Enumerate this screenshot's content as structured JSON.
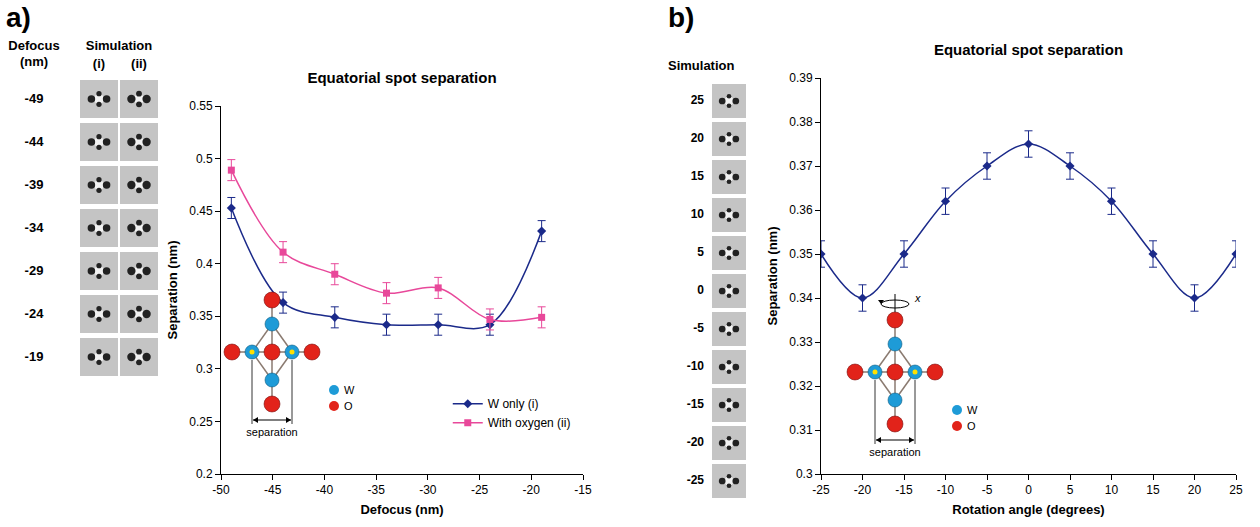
{
  "panels": [
    {
      "label": "a)",
      "simulation": {
        "row_header": "Defocus (nm)",
        "header": "Simulation",
        "columns": [
          "(i)",
          "(ii)"
        ],
        "rows": [
          -49,
          -44,
          -39,
          -34,
          -29,
          -24,
          -19
        ]
      },
      "inset": {
        "labels": [
          "W",
          "O"
        ],
        "colors": [
          "#1e9bd7",
          "#e2231a"
        ],
        "measure": "separation"
      }
    },
    {
      "label": "b)",
      "simulation": {
        "header": "Simulation",
        "rows": [
          25,
          20,
          15,
          10,
          5,
          0,
          -5,
          -10,
          -15,
          -20,
          -25
        ]
      },
      "inset": {
        "labels": [
          "W",
          "O"
        ],
        "colors": [
          "#1e9bd7",
          "#e2231a"
        ],
        "measure": "separation",
        "axis": "x"
      }
    }
  ],
  "chart_data": [
    {
      "type": "line",
      "title": "Equatorial spot separation",
      "x_label": "Defocus (nm)",
      "y_label": "Separation (nm)",
      "x": [
        -49,
        -44,
        -39,
        -34,
        -29,
        -24,
        -19
      ],
      "series": [
        {
          "name": "W only (i)",
          "color": "#1b2a8a",
          "marker": "diamond",
          "values": [
            0.453,
            0.363,
            0.349,
            0.342,
            0.342,
            0.342,
            0.431
          ],
          "errors": [
            0.01,
            0.01,
            0.01,
            0.01,
            0.01,
            0.01,
            0.01
          ]
        },
        {
          "name": "With oxygen (ii)",
          "color": "#e8489a",
          "marker": "square",
          "values": [
            0.489,
            0.411,
            0.39,
            0.372,
            0.377,
            0.347,
            0.349
          ],
          "errors": [
            0.01,
            0.01,
            0.01,
            0.01,
            0.01,
            0.01,
            0.01
          ]
        }
      ],
      "xlim": [
        -50,
        -15
      ],
      "xticks": [
        -50,
        -45,
        -40,
        -35,
        -30,
        -25,
        -20,
        -15
      ],
      "ylim": [
        0.2,
        0.55
      ],
      "yticks": [
        0.2,
        0.25,
        0.3,
        0.35,
        0.4,
        0.45,
        0.5,
        0.55
      ],
      "grid": false,
      "legend": "lower right",
      "line_style": "smooth"
    },
    {
      "type": "line",
      "title": "Equatorial spot separation",
      "x_label": "Rotation angle (degrees)",
      "y_label": "Separation (nm)",
      "x": [
        -25,
        -20,
        -15,
        -10,
        -5,
        0,
        5,
        10,
        15,
        20,
        25
      ],
      "values": [
        0.35,
        0.34,
        0.35,
        0.362,
        0.37,
        0.375,
        0.37,
        0.362,
        0.35,
        0.34,
        0.35
      ],
      "errors": [
        0.003,
        0.003,
        0.003,
        0.003,
        0.003,
        0.003,
        0.003,
        0.003,
        0.003,
        0.003,
        0.003
      ],
      "color": "#1b2a8a",
      "marker": "diamond",
      "xlim": [
        -25,
        25
      ],
      "xticks": [
        -25,
        -20,
        -15,
        -10,
        -5,
        0,
        5,
        10,
        15,
        20,
        25
      ],
      "ylim": [
        0.3,
        0.39
      ],
      "yticks": [
        0.3,
        0.31,
        0.32,
        0.33,
        0.34,
        0.35,
        0.36,
        0.37,
        0.38,
        0.39
      ],
      "grid": false,
      "line_style": "smooth"
    }
  ]
}
